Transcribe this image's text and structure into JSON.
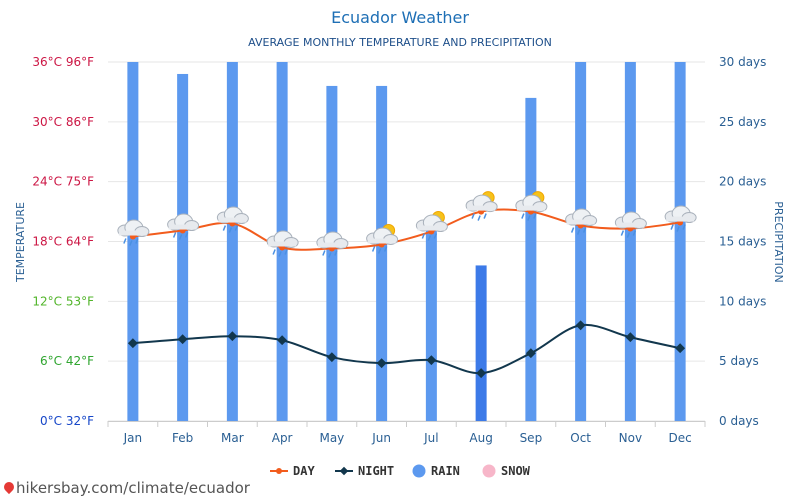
{
  "page": {
    "title": "Ecuador Weather",
    "subtitle": "AVERAGE MONTHLY TEMPERATURE AND PRECIPITATION",
    "footer": "hikersbay.com/climate/ecuador"
  },
  "colors": {
    "day": "#f25c1d",
    "night": "#12374d",
    "rain": "#5c99ef",
    "rain_highlight": "#3c7ae8",
    "snow": "#f7b6c9",
    "title": "#1e6fb5",
    "right_axis": "#2a5f93",
    "grid": "#e6e6e6"
  },
  "chart_data": {
    "type": "bar",
    "title": "Ecuador Weather",
    "subtitle": "AVERAGE MONTHLY TEMPERATURE AND PRECIPITATION",
    "categories": [
      "Jan",
      "Feb",
      "Mar",
      "Apr",
      "May",
      "Jun",
      "Jul",
      "Aug",
      "Sep",
      "Oct",
      "Nov",
      "Dec"
    ],
    "ylabel_left": "TEMPERATURE",
    "ylabel_right": "PRECIPITATION",
    "ylim_left": [
      0,
      36
    ],
    "ylim_right": [
      0,
      30
    ],
    "left_ticks": [
      {
        "value": 0,
        "label": "0°C 32°F",
        "color": "#1646c8"
      },
      {
        "value": 6,
        "label": "6°C 42°F",
        "color": "#2fa52f"
      },
      {
        "value": 12,
        "label": "12°C 53°F",
        "color": "#52b52b"
      },
      {
        "value": 18,
        "label": "18°C 64°F",
        "color": "#cc1644"
      },
      {
        "value": 24,
        "label": "24°C 75°F",
        "color": "#cc1644"
      },
      {
        "value": 30,
        "label": "30°C 86°F",
        "color": "#cc1644"
      },
      {
        "value": 36,
        "label": "36°C 96°F",
        "color": "#cc1644"
      }
    ],
    "right_ticks": [
      {
        "value": 0,
        "label": "0 days"
      },
      {
        "value": 5,
        "label": "5 days"
      },
      {
        "value": 10,
        "label": "10 days"
      },
      {
        "value": 15,
        "label": "15 days"
      },
      {
        "value": 20,
        "label": "20 days"
      },
      {
        "value": 25,
        "label": "25 days"
      },
      {
        "value": 30,
        "label": "30 days"
      }
    ],
    "series": [
      {
        "name": "DAY",
        "kind": "line",
        "axis": "left",
        "values": [
          18.5,
          19.1,
          19.8,
          17.4,
          17.3,
          17.7,
          19.0,
          21.0,
          21.0,
          19.6,
          19.3,
          19.9
        ]
      },
      {
        "name": "NIGHT",
        "kind": "line",
        "axis": "left",
        "values": [
          7.8,
          8.2,
          8.5,
          8.1,
          6.4,
          5.8,
          6.1,
          4.8,
          6.8,
          9.6,
          8.4,
          7.3
        ]
      },
      {
        "name": "RAIN",
        "kind": "bar",
        "axis": "right",
        "values": [
          30,
          29,
          30,
          30,
          28,
          28,
          16,
          13,
          27,
          30,
          30,
          30
        ]
      },
      {
        "name": "SNOW",
        "kind": "bar",
        "axis": "right",
        "values": [
          0,
          0,
          0,
          0,
          0,
          0,
          0,
          0,
          0,
          0,
          0,
          0
        ]
      }
    ],
    "weather_icons": [
      "rain-cloud-icon",
      "rain-cloud-icon",
      "rain-cloud-icon",
      "rain-cloud-icon",
      "rain-cloud-icon",
      "sun-cloud-rain-icon",
      "sun-cloud-rain-icon",
      "sun-cloud-rain-icon",
      "sun-cloud-rain-icon",
      "rain-cloud-icon",
      "rain-cloud-icon",
      "rain-cloud-icon"
    ],
    "legend": [
      "DAY",
      "NIGHT",
      "RAIN",
      "SNOW"
    ],
    "legend_position": "bottom",
    "grid": true
  }
}
